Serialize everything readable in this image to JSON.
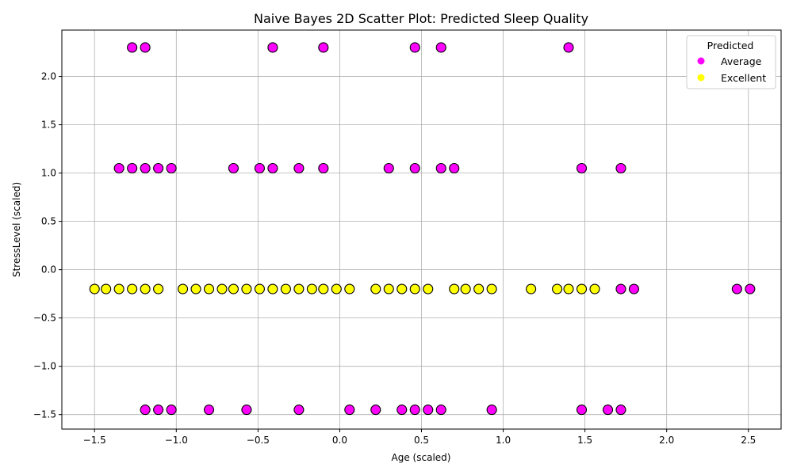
{
  "chart_data": {
    "type": "scatter",
    "title": "Naive Bayes 2D Scatter Plot: Predicted Sleep Quality",
    "xlabel": "Age (scaled)",
    "ylabel": "StressLevel (scaled)",
    "xlim": [
      -1.7,
      2.7
    ],
    "ylim": [
      -1.65,
      2.48
    ],
    "xticks": [
      -1.5,
      -1.0,
      -0.5,
      0.0,
      0.5,
      1.0,
      1.5,
      2.0,
      2.5
    ],
    "yticks": [
      -1.5,
      -1.0,
      -0.5,
      0.0,
      0.5,
      1.0,
      1.5,
      2.0
    ],
    "xtick_labels": [
      "−1.5",
      "−1.0",
      "−0.5",
      "0.0",
      "0.5",
      "1.0",
      "1.5",
      "2.0",
      "2.5"
    ],
    "ytick_labels": [
      "−1.5",
      "−1.0",
      "−0.5",
      "0.0",
      "0.5",
      "1.0",
      "1.5",
      "2.0"
    ],
    "grid": true,
    "legend": {
      "title": "Predicted",
      "placement": "top-right"
    },
    "series": [
      {
        "name": "Average",
        "color": "#ff00ff",
        "points": [
          [
            -1.27,
            2.3
          ],
          [
            -1.19,
            2.3
          ],
          [
            -0.41,
            2.3
          ],
          [
            -0.1,
            2.3
          ],
          [
            0.46,
            2.3
          ],
          [
            0.62,
            2.3
          ],
          [
            1.4,
            2.3
          ],
          [
            -1.35,
            1.05
          ],
          [
            -1.27,
            1.05
          ],
          [
            -1.19,
            1.05
          ],
          [
            -1.11,
            1.05
          ],
          [
            -1.03,
            1.05
          ],
          [
            -0.65,
            1.05
          ],
          [
            -0.49,
            1.05
          ],
          [
            -0.41,
            1.05
          ],
          [
            -0.25,
            1.05
          ],
          [
            -0.1,
            1.05
          ],
          [
            0.3,
            1.05
          ],
          [
            0.46,
            1.05
          ],
          [
            0.62,
            1.05
          ],
          [
            0.7,
            1.05
          ],
          [
            1.48,
            1.05
          ],
          [
            1.72,
            1.05
          ],
          [
            1.72,
            -0.2
          ],
          [
            1.8,
            -0.2
          ],
          [
            2.43,
            -0.2
          ],
          [
            2.51,
            -0.2
          ],
          [
            -1.19,
            -1.45
          ],
          [
            -1.11,
            -1.45
          ],
          [
            -1.03,
            -1.45
          ],
          [
            -0.8,
            -1.45
          ],
          [
            -0.57,
            -1.45
          ],
          [
            -0.25,
            -1.45
          ],
          [
            0.06,
            -1.45
          ],
          [
            0.22,
            -1.45
          ],
          [
            0.38,
            -1.45
          ],
          [
            0.46,
            -1.45
          ],
          [
            0.54,
            -1.45
          ],
          [
            0.62,
            -1.45
          ],
          [
            0.93,
            -1.45
          ],
          [
            1.48,
            -1.45
          ],
          [
            1.64,
            -1.45
          ],
          [
            1.72,
            -1.45
          ]
        ]
      },
      {
        "name": "Excellent",
        "color": "#ffff00",
        "points": [
          [
            -1.5,
            -0.2
          ],
          [
            -1.43,
            -0.2
          ],
          [
            -1.35,
            -0.2
          ],
          [
            -1.27,
            -0.2
          ],
          [
            -1.19,
            -0.2
          ],
          [
            -1.11,
            -0.2
          ],
          [
            -0.96,
            -0.2
          ],
          [
            -0.88,
            -0.2
          ],
          [
            -0.8,
            -0.2
          ],
          [
            -0.72,
            -0.2
          ],
          [
            -0.65,
            -0.2
          ],
          [
            -0.57,
            -0.2
          ],
          [
            -0.49,
            -0.2
          ],
          [
            -0.41,
            -0.2
          ],
          [
            -0.33,
            -0.2
          ],
          [
            -0.25,
            -0.2
          ],
          [
            -0.17,
            -0.2
          ],
          [
            -0.1,
            -0.2
          ],
          [
            -0.02,
            -0.2
          ],
          [
            0.06,
            -0.2
          ],
          [
            0.22,
            -0.2
          ],
          [
            0.3,
            -0.2
          ],
          [
            0.38,
            -0.2
          ],
          [
            0.46,
            -0.2
          ],
          [
            0.54,
            -0.2
          ],
          [
            0.7,
            -0.2
          ],
          [
            0.77,
            -0.2
          ],
          [
            0.85,
            -0.2
          ],
          [
            0.93,
            -0.2
          ],
          [
            1.17,
            -0.2
          ],
          [
            1.33,
            -0.2
          ],
          [
            1.4,
            -0.2
          ],
          [
            1.48,
            -0.2
          ],
          [
            1.56,
            -0.2
          ]
        ]
      }
    ]
  }
}
